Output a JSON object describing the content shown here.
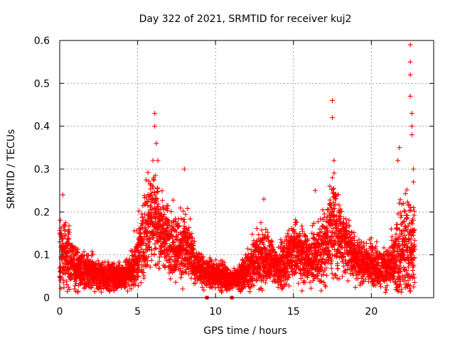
{
  "chart_data": {
    "type": "scatter",
    "title": "Day 322 of 2021, SRMTID for receiver kuj2",
    "xlabel": "GPS time / hours",
    "ylabel": "SRMTID / TECUs",
    "xlim": [
      0,
      24
    ],
    "ylim": [
      0,
      0.6
    ],
    "x_ticks": [
      0,
      5,
      10,
      15,
      20
    ],
    "x_tick_labels": [
      "0",
      "5",
      "10",
      "15",
      "20"
    ],
    "y_ticks": [
      0,
      0.1,
      0.2,
      0.3,
      0.4,
      0.5,
      0.6
    ],
    "y_tick_labels": [
      "0",
      "0.1",
      "0.2",
      "0.3",
      "0.4",
      "0.5",
      "0.6"
    ],
    "grid": true,
    "marker": "+",
    "color": "#ff0000",
    "series": [
      {
        "name": "SRMTID",
        "envelope": {
          "hour": [
            0.0,
            0.3,
            0.6,
            1.0,
            1.5,
            2.0,
            2.5,
            3.0,
            3.5,
            4.0,
            4.5,
            5.0,
            5.3,
            5.6,
            5.9,
            6.1,
            6.4,
            6.8,
            7.2,
            7.6,
            8.0,
            8.4,
            8.8,
            9.2,
            9.6,
            10.0,
            10.5,
            11.0,
            11.5,
            12.0,
            12.5,
            13.0,
            13.5,
            14.0,
            14.5,
            15.0,
            15.5,
            16.0,
            16.5,
            17.0,
            17.3,
            17.6,
            18.0,
            18.5,
            19.0,
            19.5,
            20.0,
            20.5,
            21.0,
            21.5,
            21.8,
            22.1,
            22.4,
            22.7
          ],
          "median": [
            0.1,
            0.1,
            0.09,
            0.07,
            0.06,
            0.06,
            0.05,
            0.05,
            0.05,
            0.05,
            0.06,
            0.09,
            0.13,
            0.17,
            0.2,
            0.2,
            0.16,
            0.14,
            0.13,
            0.12,
            0.12,
            0.1,
            0.07,
            0.06,
            0.06,
            0.05,
            0.05,
            0.04,
            0.05,
            0.06,
            0.08,
            0.1,
            0.09,
            0.07,
            0.08,
            0.11,
            0.1,
            0.09,
            0.1,
            0.12,
            0.15,
            0.17,
            0.14,
            0.12,
            0.09,
            0.08,
            0.08,
            0.07,
            0.07,
            0.08,
            0.1,
            0.11,
            0.13,
            0.12
          ],
          "spread": [
            0.07,
            0.08,
            0.07,
            0.04,
            0.04,
            0.04,
            0.03,
            0.03,
            0.03,
            0.03,
            0.04,
            0.06,
            0.08,
            0.1,
            0.12,
            0.1,
            0.08,
            0.07,
            0.07,
            0.07,
            0.08,
            0.06,
            0.03,
            0.03,
            0.03,
            0.03,
            0.03,
            0.02,
            0.03,
            0.04,
            0.06,
            0.07,
            0.05,
            0.04,
            0.05,
            0.06,
            0.06,
            0.05,
            0.06,
            0.08,
            0.1,
            0.12,
            0.07,
            0.06,
            0.05,
            0.04,
            0.05,
            0.04,
            0.04,
            0.07,
            0.1,
            0.09,
            0.12,
            0.08
          ]
        },
        "peaks": [
          {
            "x": 6.1,
            "y": 0.43
          },
          {
            "x": 6.1,
            "y": 0.4
          },
          {
            "x": 6.2,
            "y": 0.36
          },
          {
            "x": 6.3,
            "y": 0.32
          },
          {
            "x": 8.0,
            "y": 0.3
          },
          {
            "x": 17.5,
            "y": 0.46
          },
          {
            "x": 17.5,
            "y": 0.42
          },
          {
            "x": 17.6,
            "y": 0.32
          },
          {
            "x": 17.5,
            "y": 0.28
          },
          {
            "x": 21.8,
            "y": 0.35
          },
          {
            "x": 21.7,
            "y": 0.32
          },
          {
            "x": 22.5,
            "y": 0.59
          },
          {
            "x": 22.5,
            "y": 0.55
          },
          {
            "x": 22.5,
            "y": 0.52
          },
          {
            "x": 22.5,
            "y": 0.47
          },
          {
            "x": 22.6,
            "y": 0.43
          },
          {
            "x": 22.6,
            "y": 0.4
          },
          {
            "x": 22.6,
            "y": 0.38
          },
          {
            "x": 22.7,
            "y": 0.3
          },
          {
            "x": 22.7,
            "y": 0.27
          },
          {
            "x": 16.4,
            "y": 0.25
          },
          {
            "x": 0.2,
            "y": 0.24
          },
          {
            "x": 13.1,
            "y": 0.23
          }
        ],
        "data_gaps_hours": [
          9.45,
          11.05
        ],
        "sample_spacing_hours": 0.01,
        "end_hour": 22.8
      }
    ]
  }
}
